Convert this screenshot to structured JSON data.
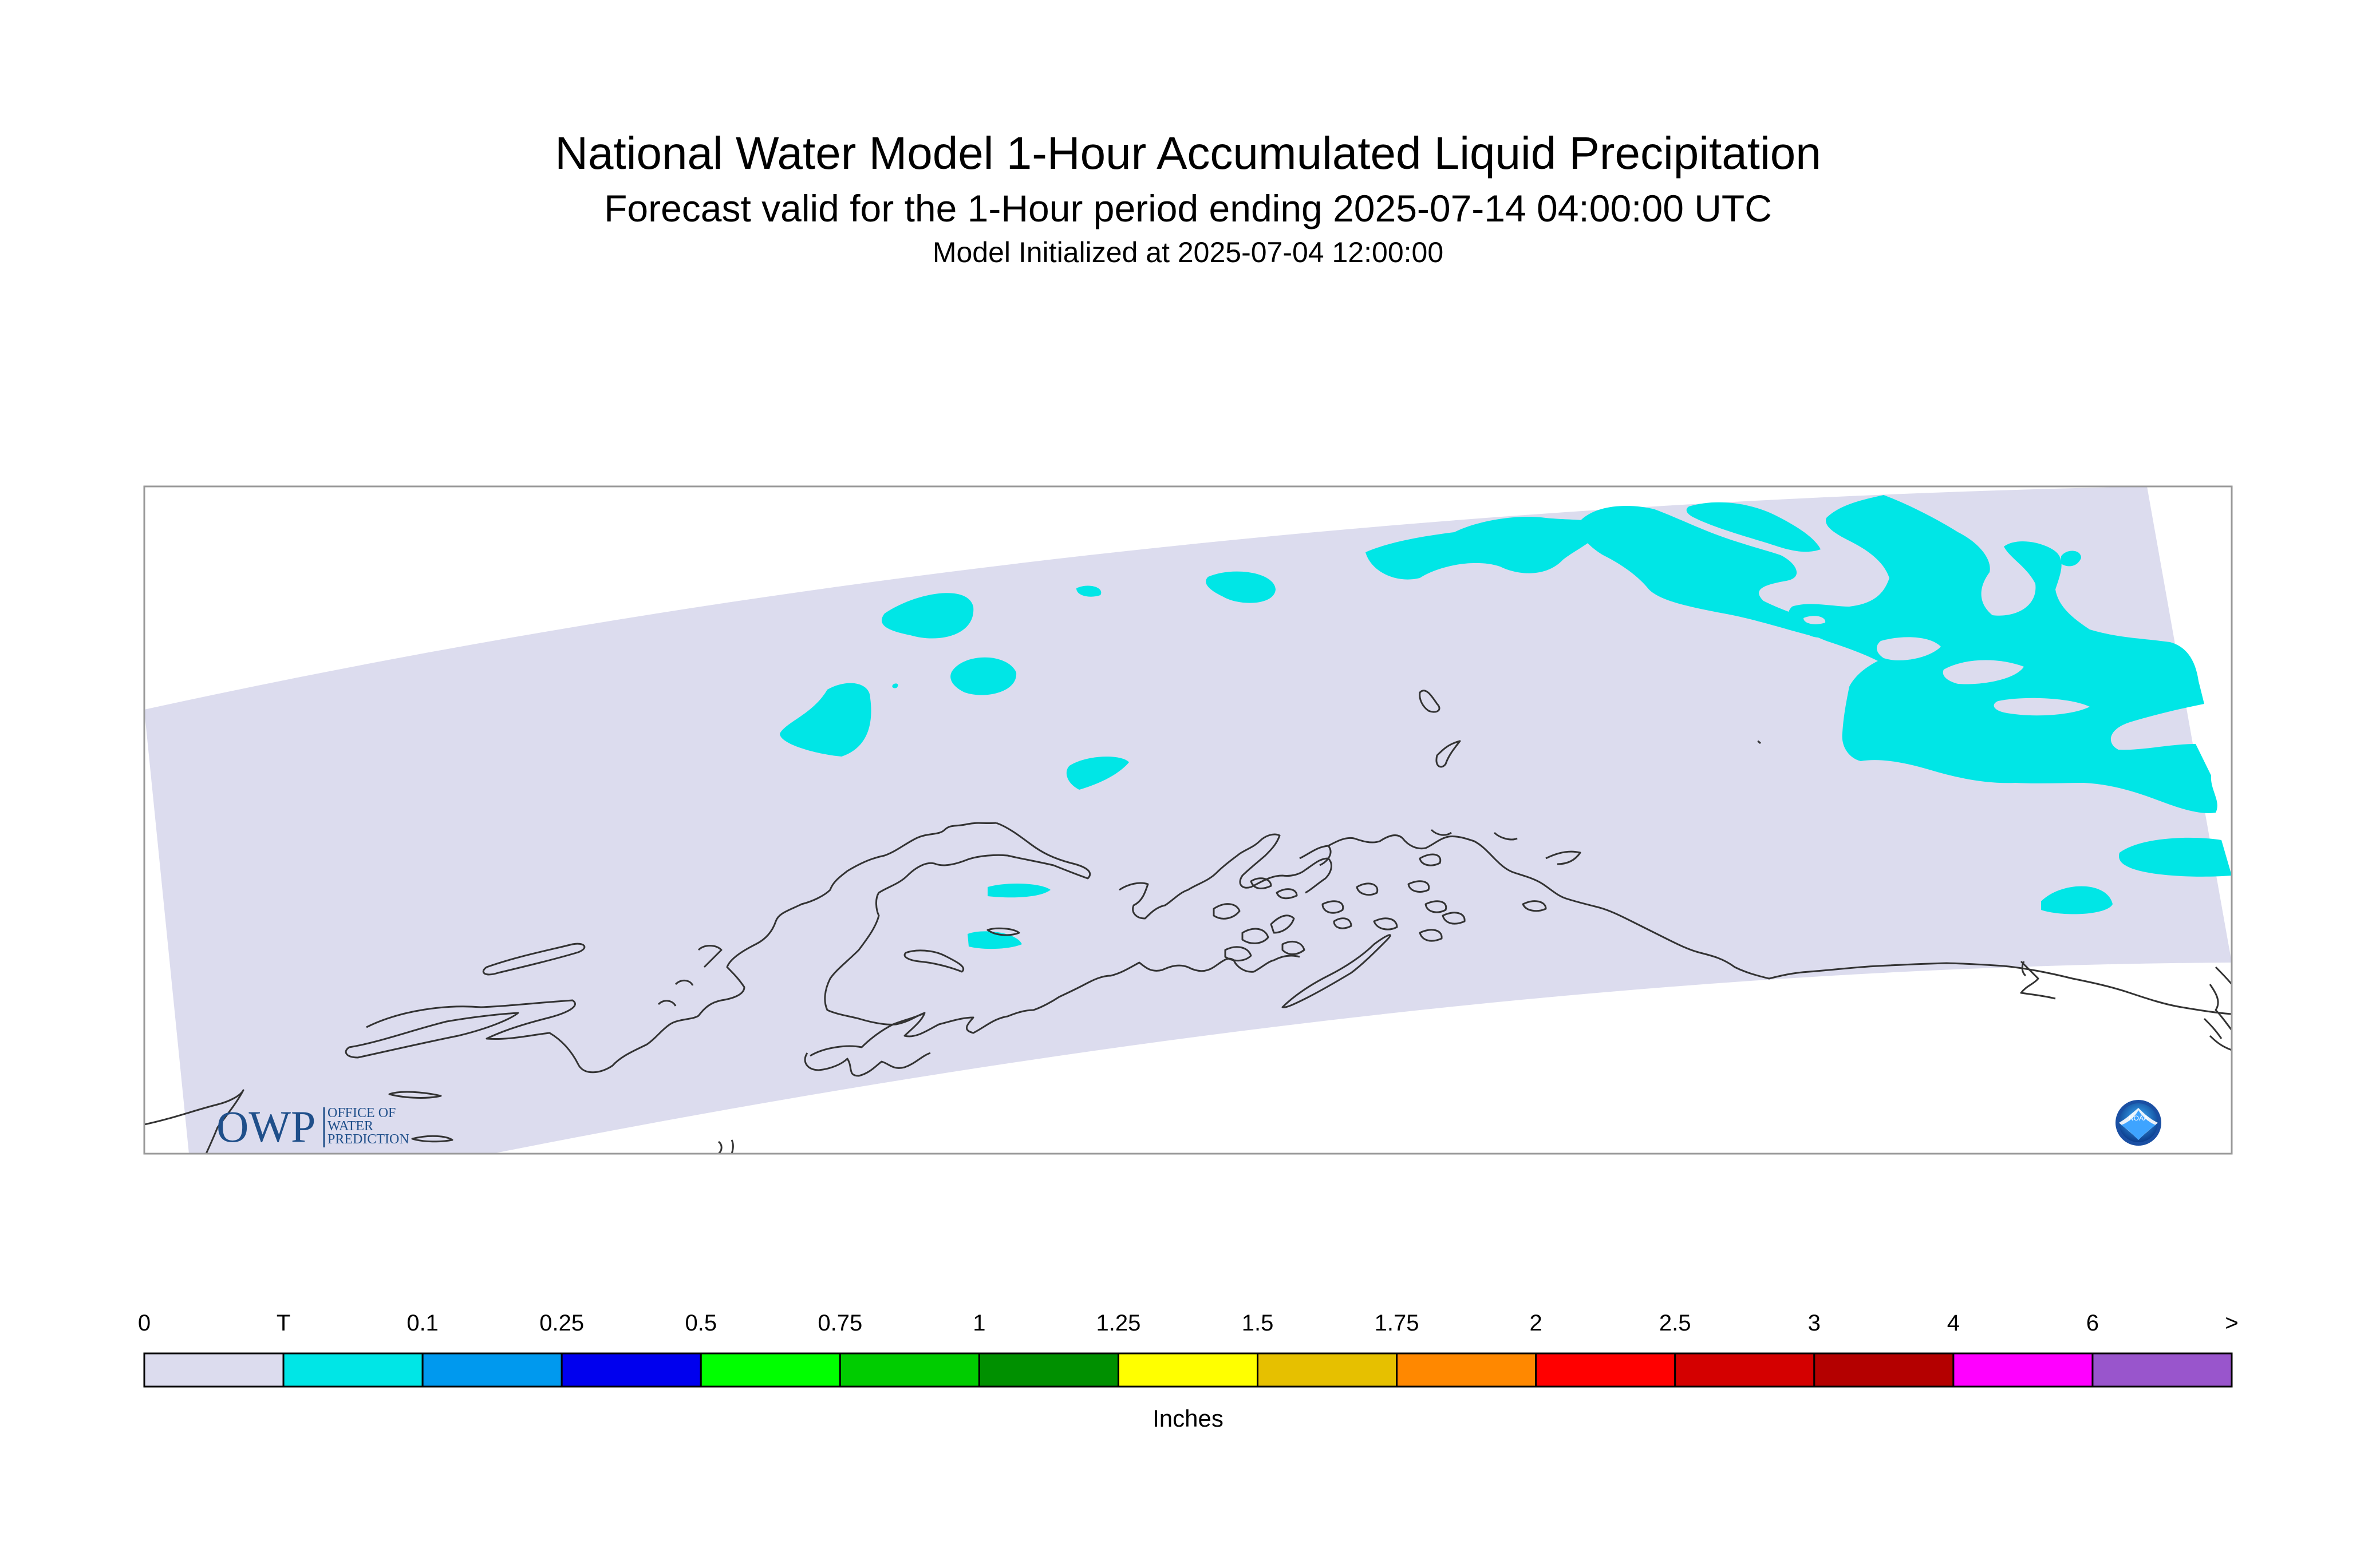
{
  "header": {
    "title": "National Water Model 1-Hour Accumulated Liquid Precipitation",
    "subtitle": "Forecast valid for the 1-Hour period ending 2025-07-14 04:00:00 UTC",
    "init_line": "Model Initialized at 2025-07-04 12:00:00"
  },
  "map": {
    "domain_fill_color": "#dcdcee",
    "trace_color": "#00e6e6",
    "coastline_color": "#333333"
  },
  "logos": {
    "owp_mark": "OWP",
    "owp_text_lines": [
      "OFFICE OF",
      "WATER",
      "PREDICTION"
    ],
    "noaa_mark": "NOAA"
  },
  "colorbar": {
    "labels": [
      "0",
      "T",
      "0.1",
      "0.25",
      "0.5",
      "0.75",
      "1",
      "1.25",
      "1.5",
      "1.75",
      "2",
      "2.5",
      "3",
      "4",
      "6",
      ">"
    ],
    "colors": [
      "#dcdcee",
      "#00e6e6",
      "#0099ee",
      "#0000ee",
      "#00ff00",
      "#00cc00",
      "#009000",
      "#ffff00",
      "#e6c000",
      "#ff8800",
      "#ff0000",
      "#d40000",
      "#b40000",
      "#ff00ff",
      "#9955cc"
    ],
    "units": "Inches"
  }
}
